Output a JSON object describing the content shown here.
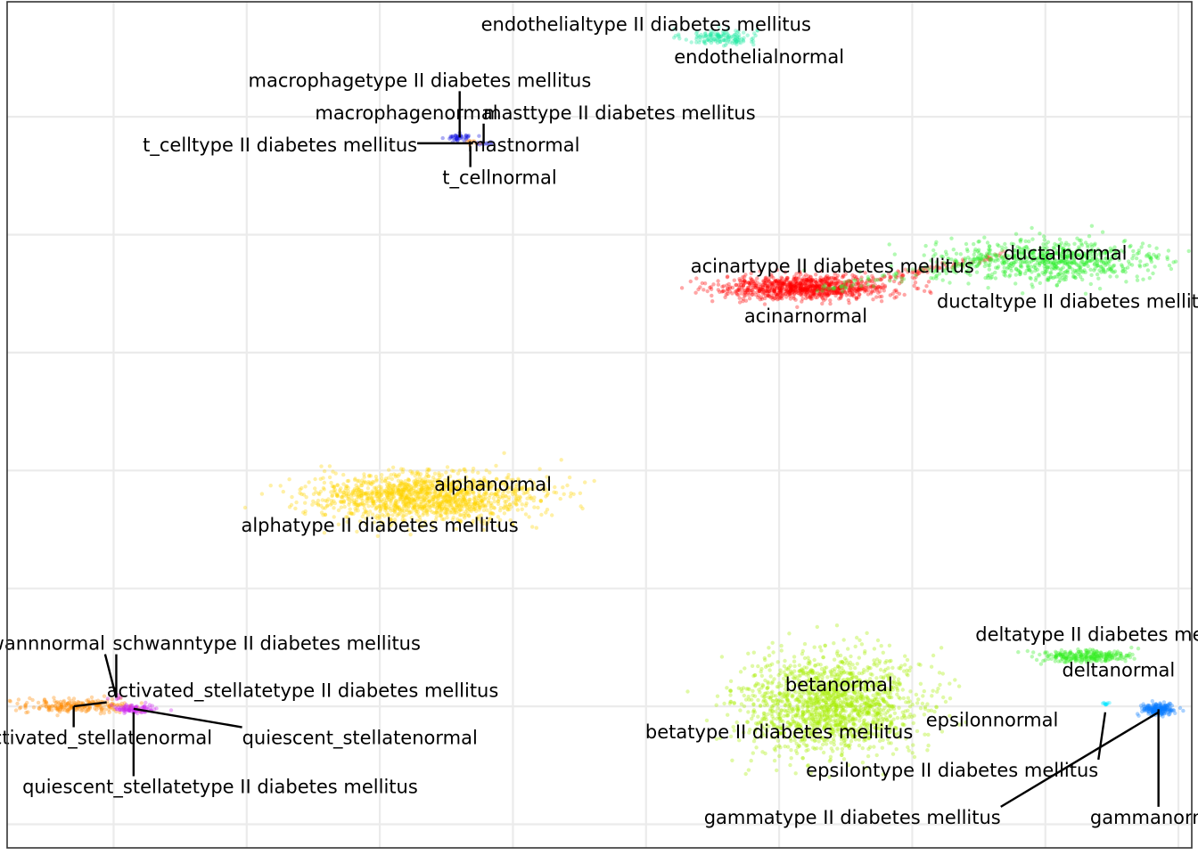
{
  "chart_data": {
    "type": "scatter",
    "title": "",
    "xlabel": "",
    "ylabel": "",
    "grid": true,
    "legend": "none",
    "clusters": [
      {
        "id": "endo",
        "color": "#1ee8a0",
        "n": 140,
        "center": [
          3.55,
          17.35
        ],
        "spread": [
          0.14,
          0.07
        ],
        "shape": "blob"
      },
      {
        "id": "macro",
        "color": "#1010e0",
        "n": 40,
        "center": [
          1.6,
          15.65
        ],
        "spread": [
          0.045,
          0.03
        ],
        "shape": "blob"
      },
      {
        "id": "mast",
        "color": "#3030d0",
        "n": 18,
        "center": [
          1.78,
          15.55
        ],
        "spread": [
          0.04,
          0.02
        ],
        "shape": "blob"
      },
      {
        "id": "tcell",
        "color": "#ff7f00",
        "n": 8,
        "center": [
          1.7,
          15.58
        ],
        "spread": [
          0.03,
          0.03
        ],
        "shape": "blob"
      },
      {
        "id": "acinar",
        "color": "#ff0000",
        "n": 900,
        "center": [
          4.2,
          13.1
        ],
        "spread": [
          0.32,
          0.1
        ],
        "shape": "blob"
      },
      {
        "id": "acinar-bridge",
        "color": "#ff2020",
        "n": 120,
        "center": [
          5.0,
          13.35
        ],
        "spread": [
          0.7,
          0.08
        ],
        "shape": "bridge"
      },
      {
        "id": "ductal",
        "color": "#22ee22",
        "n": 700,
        "center": [
          6.05,
          13.55
        ],
        "spread": [
          0.45,
          0.18
        ],
        "shape": "blob"
      },
      {
        "id": "ductal-bridge",
        "color": "#33ee33",
        "n": 90,
        "center": [
          5.0,
          13.35
        ],
        "spread": [
          0.7,
          0.1
        ],
        "shape": "bridge"
      },
      {
        "id": "alpha",
        "color": "#ffd400",
        "n": 1400,
        "center": [
          1.35,
          9.55
        ],
        "spread": [
          0.42,
          0.2
        ],
        "shape": "blob"
      },
      {
        "id": "beta",
        "color": "#a6ee00",
        "n": 1600,
        "center": [
          4.4,
          6.05
        ],
        "spread": [
          0.32,
          0.42
        ],
        "shape": "blob"
      },
      {
        "id": "delta",
        "color": "#33ee22",
        "n": 260,
        "center": [
          6.3,
          6.85
        ],
        "spread": [
          0.17,
          0.05
        ],
        "shape": "blob"
      },
      {
        "id": "gamma",
        "color": "#0a7aff",
        "n": 200,
        "center": [
          6.85,
          5.95
        ],
        "spread": [
          0.06,
          0.05
        ],
        "shape": "blob"
      },
      {
        "id": "epsilon",
        "color": "#00e5ff",
        "n": 10,
        "center": [
          6.45,
          6.05
        ],
        "spread": [
          0.02,
          0.02
        ],
        "shape": "blob"
      },
      {
        "id": "activated-stellate",
        "color": "#ff8a00",
        "n": 220,
        "center": [
          -1.3,
          6.0
        ],
        "spread": [
          0.22,
          0.06
        ],
        "shape": "blob"
      },
      {
        "id": "quiescent-stellate",
        "color": "#cc22ee",
        "n": 90,
        "center": [
          -0.85,
          5.96
        ],
        "spread": [
          0.08,
          0.04
        ],
        "shape": "blob"
      },
      {
        "id": "schwann",
        "color": "#cc00cc",
        "n": 5,
        "center": [
          -0.98,
          6.15
        ],
        "spread": [
          0.02,
          0.02
        ],
        "shape": "blob"
      }
    ],
    "labels": [
      {
        "text": "endothelialtype II diabetes mellitus",
        "anchor": [
          3.5,
          17.45
        ],
        "label_pos": [
          3.0,
          17.55
        ],
        "align": "middle",
        "leader": false
      },
      {
        "text": "endothelialnormal",
        "anchor": [
          3.6,
          17.3
        ],
        "label_pos": [
          3.85,
          17.0
        ],
        "align": "middle",
        "leader": false
      },
      {
        "text": "macrophagetype II diabetes mellitus",
        "anchor": [
          1.6,
          15.65
        ],
        "label_pos": [
          1.3,
          16.6
        ],
        "align": "middle",
        "leader": true
      },
      {
        "text": "macrophagenormal",
        "anchor": [
          1.6,
          15.65
        ],
        "label_pos": [
          1.2,
          16.05
        ],
        "align": "middle",
        "leader": false
      },
      {
        "text": "masttype II diabetes mellitus",
        "anchor": [
          1.78,
          15.55
        ],
        "label_pos": [
          2.8,
          16.05
        ],
        "align": "middle",
        "leader": true
      },
      {
        "text": "mastnormal",
        "anchor": [
          1.78,
          15.55
        ],
        "label_pos": [
          2.08,
          15.5
        ],
        "align": "middle",
        "leader": false
      },
      {
        "text": "t_celltype II diabetes mellitus",
        "anchor": [
          1.7,
          15.55
        ],
        "label_pos": [
          0.25,
          15.5
        ],
        "align": "middle",
        "leader": true
      },
      {
        "text": "t_cellnormal",
        "anchor": [
          1.68,
          15.5
        ],
        "label_pos": [
          1.9,
          14.95
        ],
        "align": "middle",
        "leader": true
      },
      {
        "text": "acinartype II diabetes mellitus",
        "anchor": [
          4.5,
          13.3
        ],
        "label_pos": [
          4.4,
          13.45
        ],
        "align": "middle",
        "leader": false
      },
      {
        "text": "acinarnormal",
        "anchor": [
          4.2,
          13.0
        ],
        "label_pos": [
          4.2,
          12.6
        ],
        "align": "middle",
        "leader": false
      },
      {
        "text": "ductalnormal",
        "anchor": [
          6.05,
          13.7
        ],
        "label_pos": [
          6.15,
          13.67
        ],
        "align": "middle",
        "leader": false
      },
      {
        "text": "ductaltype II diabetes mellitus",
        "anchor": [
          6.1,
          13.2
        ],
        "label_pos": [
          6.25,
          12.85
        ],
        "align": "middle",
        "leader": false
      },
      {
        "text": "alphanormal",
        "anchor": [
          1.5,
          9.75
        ],
        "label_pos": [
          1.85,
          9.75
        ],
        "align": "middle",
        "leader": false
      },
      {
        "text": "alphatype II diabetes mellitus",
        "anchor": [
          1.35,
          9.1
        ],
        "label_pos": [
          1.0,
          9.05
        ],
        "align": "middle",
        "leader": false
      },
      {
        "text": "betanormal",
        "anchor": [
          4.45,
          6.3
        ],
        "label_pos": [
          4.45,
          6.35
        ],
        "align": "middle",
        "leader": false
      },
      {
        "text": "betatype II diabetes mellitus",
        "anchor": [
          4.45,
          5.65
        ],
        "label_pos": [
          4.0,
          5.55
        ],
        "align": "middle",
        "leader": false
      },
      {
        "text": "deltatype II diabetes mellitus",
        "anchor": [
          6.3,
          6.9
        ],
        "label_pos": [
          6.5,
          7.2
        ],
        "align": "middle",
        "leader": false
      },
      {
        "text": "deltanormal",
        "anchor": [
          6.3,
          6.8
        ],
        "label_pos": [
          6.55,
          6.6
        ],
        "align": "middle",
        "leader": false
      },
      {
        "text": "epsilonnormal",
        "anchor": [
          6.45,
          6.05
        ],
        "label_pos": [
          5.6,
          5.75
        ],
        "align": "middle",
        "leader": false
      },
      {
        "text": "epsilontype II diabetes mellitus",
        "anchor": [
          6.45,
          5.9
        ],
        "label_pos": [
          5.3,
          4.9
        ],
        "align": "middle",
        "leader": true
      },
      {
        "text": "gammatype II diabetes mellitus",
        "anchor": [
          6.85,
          5.9
        ],
        "label_pos": [
          4.55,
          4.1
        ],
        "align": "middle",
        "leader": true
      },
      {
        "text": "gammanormal",
        "anchor": [
          6.85,
          5.95
        ],
        "label_pos": [
          6.85,
          4.1
        ],
        "align": "middle",
        "leader": true
      },
      {
        "text": "schwannnormal",
        "anchor": [
          -0.98,
          6.15
        ],
        "label_pos": [
          -1.62,
          7.05
        ],
        "align": "middle",
        "leader": true
      },
      {
        "text": "schwanntype II diabetes mellitus",
        "anchor": [
          -0.98,
          6.15
        ],
        "label_pos": [
          0.15,
          7.05
        ],
        "align": "middle",
        "leader": true
      },
      {
        "text": "activated_stellatetype II diabetes mellitus",
        "anchor": [
          -1.3,
          6.0
        ],
        "label_pos": [
          0.42,
          6.25
        ],
        "align": "middle",
        "leader": true
      },
      {
        "text": "activated_stellatenormal",
        "anchor": [
          -1.3,
          6.0
        ],
        "label_pos": [
          -1.13,
          5.45
        ],
        "align": "middle",
        "leader": true
      },
      {
        "text": "quiescent_stellatenormal",
        "anchor": [
          -0.85,
          5.96
        ],
        "label_pos": [
          0.85,
          5.45
        ],
        "align": "middle",
        "leader": true
      },
      {
        "text": "quiescent_stellatetype II diabetes mellitus",
        "anchor": [
          -0.85,
          5.9
        ],
        "label_pos": [
          -0.2,
          4.62
        ],
        "align": "middle",
        "leader": true
      }
    ],
    "xlim": [
      -1.8,
      7.1
    ],
    "ylim": [
      3.6,
      17.95
    ],
    "xgrid": [
      -1,
      0,
      1,
      2,
      3,
      4,
      5,
      6,
      7
    ],
    "ygrid": [
      4,
      6,
      8,
      10,
      12,
      14,
      16,
      18
    ]
  }
}
